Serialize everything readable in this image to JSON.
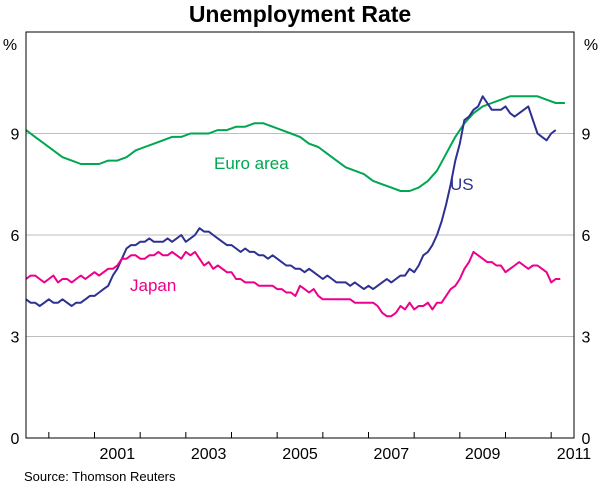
{
  "chart_data": {
    "type": "line",
    "title": "Unemployment Rate",
    "unit_left": "%",
    "unit_right": "%",
    "ylim": [
      0,
      12
    ],
    "yticks": [
      0,
      3,
      6,
      9
    ],
    "xlim": [
      1999.5,
      2011.5
    ],
    "xticks": [
      2001,
      2003,
      2005,
      2007,
      2009,
      2011
    ],
    "xtick_labels": [
      "2001",
      "2003",
      "2005",
      "2007",
      "2009",
      "2011"
    ],
    "grid": true,
    "source": "Source: Thomson Reuters",
    "series": [
      {
        "name": "Euro area",
        "color": "#00a651",
        "points": [
          [
            1999.5,
            9.1
          ],
          [
            1999.7,
            8.9
          ],
          [
            1999.9,
            8.7
          ],
          [
            2000.1,
            8.5
          ],
          [
            2000.3,
            8.3
          ],
          [
            2000.5,
            8.2
          ],
          [
            2000.7,
            8.1
          ],
          [
            2000.9,
            8.1
          ],
          [
            2001.1,
            8.1
          ],
          [
            2001.3,
            8.2
          ],
          [
            2001.5,
            8.2
          ],
          [
            2001.7,
            8.3
          ],
          [
            2001.9,
            8.5
          ],
          [
            2002.1,
            8.6
          ],
          [
            2002.3,
            8.7
          ],
          [
            2002.5,
            8.8
          ],
          [
            2002.7,
            8.9
          ],
          [
            2002.9,
            8.9
          ],
          [
            2003.1,
            9.0
          ],
          [
            2003.3,
            9.0
          ],
          [
            2003.5,
            9.0
          ],
          [
            2003.7,
            9.1
          ],
          [
            2003.9,
            9.1
          ],
          [
            2004.1,
            9.2
          ],
          [
            2004.3,
            9.2
          ],
          [
            2004.5,
            9.3
          ],
          [
            2004.7,
            9.3
          ],
          [
            2004.9,
            9.2
          ],
          [
            2005.1,
            9.1
          ],
          [
            2005.3,
            9.0
          ],
          [
            2005.5,
            8.9
          ],
          [
            2005.7,
            8.7
          ],
          [
            2005.9,
            8.6
          ],
          [
            2006.1,
            8.4
          ],
          [
            2006.3,
            8.2
          ],
          [
            2006.5,
            8.0
          ],
          [
            2006.7,
            7.9
          ],
          [
            2006.9,
            7.8
          ],
          [
            2007.1,
            7.6
          ],
          [
            2007.3,
            7.5
          ],
          [
            2007.5,
            7.4
          ],
          [
            2007.7,
            7.3
          ],
          [
            2007.9,
            7.3
          ],
          [
            2008.1,
            7.4
          ],
          [
            2008.3,
            7.6
          ],
          [
            2008.5,
            7.9
          ],
          [
            2008.7,
            8.4
          ],
          [
            2008.9,
            8.9
          ],
          [
            2009.1,
            9.3
          ],
          [
            2009.3,
            9.6
          ],
          [
            2009.5,
            9.8
          ],
          [
            2009.7,
            9.9
          ],
          [
            2009.9,
            10.0
          ],
          [
            2010.1,
            10.1
          ],
          [
            2010.3,
            10.1
          ],
          [
            2010.5,
            10.1
          ],
          [
            2010.7,
            10.1
          ],
          [
            2010.9,
            10.0
          ],
          [
            2011.1,
            9.9
          ],
          [
            2011.3,
            9.9
          ]
        ]
      },
      {
        "name": "US",
        "color": "#2e3192",
        "points": [
          [
            1999.5,
            4.1
          ],
          [
            1999.6,
            4.0
          ],
          [
            1999.7,
            4.0
          ],
          [
            1999.8,
            3.9
          ],
          [
            1999.9,
            4.0
          ],
          [
            2000.0,
            4.1
          ],
          [
            2000.1,
            4.0
          ],
          [
            2000.2,
            4.0
          ],
          [
            2000.3,
            4.1
          ],
          [
            2000.4,
            4.0
          ],
          [
            2000.5,
            3.9
          ],
          [
            2000.6,
            4.0
          ],
          [
            2000.7,
            4.0
          ],
          [
            2000.8,
            4.1
          ],
          [
            2000.9,
            4.2
          ],
          [
            2001.0,
            4.2
          ],
          [
            2001.1,
            4.3
          ],
          [
            2001.2,
            4.4
          ],
          [
            2001.3,
            4.5
          ],
          [
            2001.4,
            4.8
          ],
          [
            2001.5,
            5.0
          ],
          [
            2001.6,
            5.3
          ],
          [
            2001.7,
            5.6
          ],
          [
            2001.8,
            5.7
          ],
          [
            2001.9,
            5.7
          ],
          [
            2002.0,
            5.8
          ],
          [
            2002.1,
            5.8
          ],
          [
            2002.2,
            5.9
          ],
          [
            2002.3,
            5.8
          ],
          [
            2002.4,
            5.8
          ],
          [
            2002.5,
            5.8
          ],
          [
            2002.6,
            5.9
          ],
          [
            2002.7,
            5.8
          ],
          [
            2002.8,
            5.9
          ],
          [
            2002.9,
            6.0
          ],
          [
            2003.0,
            5.8
          ],
          [
            2003.1,
            5.9
          ],
          [
            2003.2,
            6.0
          ],
          [
            2003.3,
            6.2
          ],
          [
            2003.4,
            6.1
          ],
          [
            2003.5,
            6.1
          ],
          [
            2003.6,
            6.0
          ],
          [
            2003.7,
            5.9
          ],
          [
            2003.8,
            5.8
          ],
          [
            2003.9,
            5.7
          ],
          [
            2004.0,
            5.7
          ],
          [
            2004.1,
            5.6
          ],
          [
            2004.2,
            5.5
          ],
          [
            2004.3,
            5.6
          ],
          [
            2004.4,
            5.5
          ],
          [
            2004.5,
            5.5
          ],
          [
            2004.6,
            5.4
          ],
          [
            2004.7,
            5.4
          ],
          [
            2004.8,
            5.3
          ],
          [
            2004.9,
            5.4
          ],
          [
            2005.0,
            5.3
          ],
          [
            2005.1,
            5.2
          ],
          [
            2005.2,
            5.1
          ],
          [
            2005.3,
            5.1
          ],
          [
            2005.4,
            5.0
          ],
          [
            2005.5,
            5.0
          ],
          [
            2005.6,
            4.9
          ],
          [
            2005.7,
            5.0
          ],
          [
            2005.8,
            4.9
          ],
          [
            2005.9,
            4.8
          ],
          [
            2006.0,
            4.7
          ],
          [
            2006.1,
            4.8
          ],
          [
            2006.2,
            4.7
          ],
          [
            2006.3,
            4.6
          ],
          [
            2006.4,
            4.6
          ],
          [
            2006.5,
            4.6
          ],
          [
            2006.6,
            4.5
          ],
          [
            2006.7,
            4.6
          ],
          [
            2006.8,
            4.5
          ],
          [
            2006.9,
            4.4
          ],
          [
            2007.0,
            4.5
          ],
          [
            2007.1,
            4.4
          ],
          [
            2007.2,
            4.5
          ],
          [
            2007.3,
            4.6
          ],
          [
            2007.4,
            4.7
          ],
          [
            2007.5,
            4.6
          ],
          [
            2007.6,
            4.7
          ],
          [
            2007.7,
            4.8
          ],
          [
            2007.8,
            4.8
          ],
          [
            2007.9,
            5.0
          ],
          [
            2008.0,
            4.9
          ],
          [
            2008.1,
            5.1
          ],
          [
            2008.2,
            5.4
          ],
          [
            2008.3,
            5.5
          ],
          [
            2008.4,
            5.7
          ],
          [
            2008.5,
            6.0
          ],
          [
            2008.6,
            6.4
          ],
          [
            2008.7,
            6.9
          ],
          [
            2008.8,
            7.5
          ],
          [
            2008.9,
            8.2
          ],
          [
            2009.0,
            8.7
          ],
          [
            2009.1,
            9.4
          ],
          [
            2009.2,
            9.5
          ],
          [
            2009.3,
            9.7
          ],
          [
            2009.4,
            9.8
          ],
          [
            2009.5,
            10.1
          ],
          [
            2009.6,
            9.9
          ],
          [
            2009.7,
            9.7
          ],
          [
            2009.8,
            9.7
          ],
          [
            2009.9,
            9.7
          ],
          [
            2010.0,
            9.8
          ],
          [
            2010.1,
            9.6
          ],
          [
            2010.2,
            9.5
          ],
          [
            2010.3,
            9.6
          ],
          [
            2010.4,
            9.7
          ],
          [
            2010.5,
            9.8
          ],
          [
            2010.6,
            9.4
          ],
          [
            2010.7,
            9.0
          ],
          [
            2010.8,
            8.9
          ],
          [
            2010.9,
            8.8
          ],
          [
            2011.0,
            9.0
          ],
          [
            2011.1,
            9.1
          ]
        ]
      },
      {
        "name": "Japan",
        "color": "#ec008c",
        "points": [
          [
            1999.5,
            4.7
          ],
          [
            1999.6,
            4.8
          ],
          [
            1999.7,
            4.8
          ],
          [
            1999.8,
            4.7
          ],
          [
            1999.9,
            4.6
          ],
          [
            2000.0,
            4.7
          ],
          [
            2000.1,
            4.8
          ],
          [
            2000.2,
            4.6
          ],
          [
            2000.3,
            4.7
          ],
          [
            2000.4,
            4.7
          ],
          [
            2000.5,
            4.6
          ],
          [
            2000.6,
            4.7
          ],
          [
            2000.7,
            4.8
          ],
          [
            2000.8,
            4.7
          ],
          [
            2000.9,
            4.8
          ],
          [
            2001.0,
            4.9
          ],
          [
            2001.1,
            4.8
          ],
          [
            2001.2,
            4.9
          ],
          [
            2001.3,
            5.0
          ],
          [
            2001.4,
            5.0
          ],
          [
            2001.5,
            5.1
          ],
          [
            2001.6,
            5.3
          ],
          [
            2001.7,
            5.3
          ],
          [
            2001.8,
            5.4
          ],
          [
            2001.9,
            5.4
          ],
          [
            2002.0,
            5.3
          ],
          [
            2002.1,
            5.3
          ],
          [
            2002.2,
            5.4
          ],
          [
            2002.3,
            5.4
          ],
          [
            2002.4,
            5.5
          ],
          [
            2002.5,
            5.4
          ],
          [
            2002.6,
            5.4
          ],
          [
            2002.7,
            5.5
          ],
          [
            2002.8,
            5.4
          ],
          [
            2002.9,
            5.3
          ],
          [
            2003.0,
            5.5
          ],
          [
            2003.1,
            5.4
          ],
          [
            2003.2,
            5.5
          ],
          [
            2003.3,
            5.3
          ],
          [
            2003.4,
            5.1
          ],
          [
            2003.5,
            5.2
          ],
          [
            2003.6,
            5.0
          ],
          [
            2003.7,
            5.1
          ],
          [
            2003.8,
            5.0
          ],
          [
            2003.9,
            4.9
          ],
          [
            2004.0,
            4.9
          ],
          [
            2004.1,
            4.7
          ],
          [
            2004.2,
            4.7
          ],
          [
            2004.3,
            4.6
          ],
          [
            2004.4,
            4.6
          ],
          [
            2004.5,
            4.6
          ],
          [
            2004.6,
            4.5
          ],
          [
            2004.7,
            4.5
          ],
          [
            2004.8,
            4.5
          ],
          [
            2004.9,
            4.5
          ],
          [
            2005.0,
            4.4
          ],
          [
            2005.1,
            4.4
          ],
          [
            2005.2,
            4.3
          ],
          [
            2005.3,
            4.3
          ],
          [
            2005.4,
            4.2
          ],
          [
            2005.5,
            4.5
          ],
          [
            2005.6,
            4.4
          ],
          [
            2005.7,
            4.3
          ],
          [
            2005.8,
            4.4
          ],
          [
            2005.9,
            4.2
          ],
          [
            2006.0,
            4.1
          ],
          [
            2006.1,
            4.1
          ],
          [
            2006.2,
            4.1
          ],
          [
            2006.3,
            4.1
          ],
          [
            2006.4,
            4.1
          ],
          [
            2006.5,
            4.1
          ],
          [
            2006.6,
            4.1
          ],
          [
            2006.7,
            4.0
          ],
          [
            2006.8,
            4.0
          ],
          [
            2006.9,
            4.0
          ],
          [
            2007.0,
            4.0
          ],
          [
            2007.1,
            4.0
          ],
          [
            2007.2,
            3.9
          ],
          [
            2007.3,
            3.7
          ],
          [
            2007.4,
            3.6
          ],
          [
            2007.5,
            3.6
          ],
          [
            2007.6,
            3.7
          ],
          [
            2007.7,
            3.9
          ],
          [
            2007.8,
            3.8
          ],
          [
            2007.9,
            4.0
          ],
          [
            2008.0,
            3.8
          ],
          [
            2008.1,
            3.9
          ],
          [
            2008.2,
            3.9
          ],
          [
            2008.3,
            4.0
          ],
          [
            2008.4,
            3.8
          ],
          [
            2008.5,
            4.0
          ],
          [
            2008.6,
            4.0
          ],
          [
            2008.7,
            4.2
          ],
          [
            2008.8,
            4.4
          ],
          [
            2008.9,
            4.5
          ],
          [
            2009.0,
            4.7
          ],
          [
            2009.1,
            5.0
          ],
          [
            2009.2,
            5.2
          ],
          [
            2009.3,
            5.5
          ],
          [
            2009.4,
            5.4
          ],
          [
            2009.5,
            5.3
          ],
          [
            2009.6,
            5.2
          ],
          [
            2009.7,
            5.2
          ],
          [
            2009.8,
            5.1
          ],
          [
            2009.9,
            5.1
          ],
          [
            2010.0,
            4.9
          ],
          [
            2010.1,
            5.0
          ],
          [
            2010.2,
            5.1
          ],
          [
            2010.3,
            5.2
          ],
          [
            2010.4,
            5.1
          ],
          [
            2010.5,
            5.0
          ],
          [
            2010.6,
            5.1
          ],
          [
            2010.7,
            5.1
          ],
          [
            2010.8,
            5.0
          ],
          [
            2010.9,
            4.9
          ],
          [
            2011.0,
            4.6
          ],
          [
            2011.1,
            4.7
          ],
          [
            2011.2,
            4.7
          ]
        ]
      }
    ]
  }
}
